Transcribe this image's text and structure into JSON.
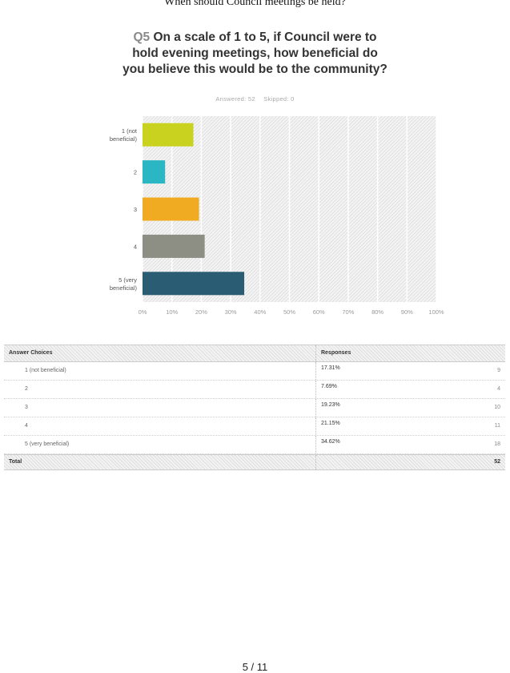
{
  "document": {
    "title": "When should Council meetings be held?",
    "page_indicator": "5 / 11"
  },
  "question": {
    "number": "Q5",
    "text": "On a scale of 1 to 5, if Council were to hold evening meetings, how beneficial do you believe this would be to the community?",
    "answered": "Answered: 52",
    "skipped": "Skipped: 0"
  },
  "chart_data": {
    "type": "bar",
    "orientation": "horizontal",
    "categories": [
      "1 (not beneficial)",
      "2",
      "3",
      "4",
      "5 (very beneficial)"
    ],
    "values": [
      17.31,
      7.69,
      19.23,
      21.15,
      34.62
    ],
    "colors": [
      "#c9d21f",
      "#2bb6c3",
      "#f1ab23",
      "#8d8e84",
      "#2a5c73"
    ],
    "x_ticks": [
      "0%",
      "10%",
      "20%",
      "30%",
      "40%",
      "50%",
      "60%",
      "70%",
      "80%",
      "90%",
      "100%"
    ],
    "xlim": [
      0,
      100
    ],
    "grid": true
  },
  "table": {
    "headers": [
      "Answer Choices",
      "Responses"
    ],
    "rows": [
      {
        "choice": "1 (not beneficial)",
        "percent": "17.31%",
        "count": "9"
      },
      {
        "choice": "2",
        "percent": "7.69%",
        "count": "4"
      },
      {
        "choice": "3",
        "percent": "19.23%",
        "count": "10"
      },
      {
        "choice": "4",
        "percent": "21.15%",
        "count": "11"
      },
      {
        "choice": "5 (very beneficial)",
        "percent": "34.62%",
        "count": "18"
      }
    ],
    "total_label": "Total",
    "total_count": "52"
  }
}
